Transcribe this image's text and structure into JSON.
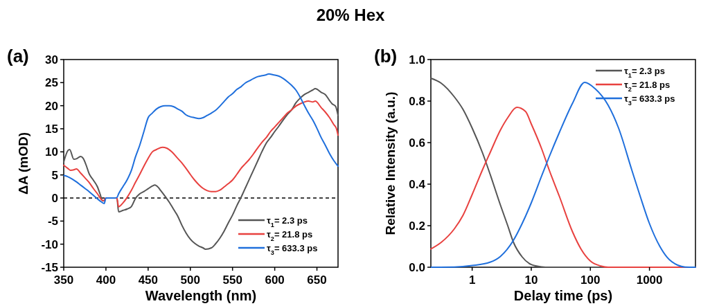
{
  "chart_data": [
    {
      "type": "line",
      "title": "20% Hex",
      "annotations": [
        "(a)"
      ],
      "xlabel": "Wavelength (nm)",
      "ylabel": "ΔA (mOD)",
      "xlim": [
        350,
        675
      ],
      "xticks": [
        350,
        400,
        450,
        500,
        550,
        600,
        650
      ],
      "ylim": [
        -15,
        30
      ],
      "yticks": [
        -15,
        -10,
        -5,
        0,
        5,
        10,
        15,
        20,
        25,
        30
      ],
      "legend": "bottom right",
      "ref_lines": [
        {
          "axis": "y",
          "value": 0,
          "color": "#000000",
          "line_style": "dashed"
        }
      ],
      "series": [
        {
          "name": "τ$_{1}$= 2.3 ps",
          "color": "#555555",
          "x": [
            350,
            355,
            357,
            362,
            365,
            370,
            373,
            377,
            380,
            385,
            390,
            393,
            396,
            398,
            400,
            405,
            410,
            413,
            415,
            420,
            425,
            430,
            435,
            440,
            445,
            450,
            455,
            458,
            462,
            465,
            470,
            475,
            480,
            485,
            490,
            495,
            500,
            505,
            510,
            515,
            518,
            525,
            530,
            535,
            540,
            545,
            550,
            555,
            560,
            565,
            570,
            575,
            580,
            585,
            590,
            595,
            600,
            605,
            610,
            615,
            620,
            625,
            630,
            635,
            640,
            645,
            648,
            655,
            660,
            665,
            668,
            672,
            675
          ],
          "values": [
            7.8,
            10.3,
            10.5,
            8.4,
            8.5,
            9.0,
            8.6,
            6.9,
            5.3,
            3.9,
            2.4,
            0.9,
            -0.6,
            -0.6,
            0,
            0,
            0,
            0,
            -3.0,
            -2.7,
            -2.4,
            -1.9,
            -0.1,
            0.9,
            1.4,
            2.0,
            2.6,
            2.8,
            2.3,
            1.6,
            0.4,
            -0.9,
            -2.4,
            -3.9,
            -5.9,
            -7.6,
            -8.9,
            -9.8,
            -10.4,
            -10.8,
            -11.1,
            -10.8,
            -9.9,
            -8.7,
            -7.2,
            -5.4,
            -3.7,
            -1.7,
            0.1,
            2.1,
            4.1,
            6.1,
            8.1,
            10.1,
            11.9,
            13.1,
            14.4,
            15.6,
            16.9,
            18.1,
            19.1,
            20.6,
            21.6,
            22.4,
            22.9,
            23.4,
            23.7,
            22.9,
            22.4,
            21.1,
            20.4,
            19.9,
            17.9
          ]
        },
        {
          "name": "τ$_{2}$= 21.8 ps",
          "color": "#e8413f",
          "x": [
            350,
            355,
            358,
            362,
            365,
            370,
            375,
            380,
            385,
            390,
            395,
            397,
            400,
            410,
            413,
            415,
            420,
            425,
            430,
            435,
            440,
            445,
            450,
            455,
            460,
            467,
            472,
            478,
            485,
            490,
            495,
            500,
            505,
            510,
            515,
            520,
            525,
            530,
            535,
            540,
            545,
            550,
            555,
            560,
            565,
            570,
            575,
            580,
            585,
            590,
            595,
            600,
            605,
            610,
            615,
            620,
            625,
            630,
            635,
            640,
            645,
            648,
            655,
            660,
            665,
            670,
            673,
            675
          ],
          "values": [
            7.1,
            6.4,
            6.0,
            6.1,
            6.3,
            5.4,
            4.4,
            3.4,
            2.1,
            0.9,
            -0.4,
            -0.6,
            0,
            0,
            0,
            -1.9,
            -1.1,
            0.1,
            1.6,
            3.4,
            5.1,
            6.9,
            8.6,
            10.0,
            10.5,
            11.0,
            10.8,
            10.0,
            8.6,
            7.6,
            6.4,
            5.1,
            3.9,
            2.9,
            2.1,
            1.6,
            1.4,
            1.4,
            1.7,
            2.4,
            3.1,
            3.9,
            5.1,
            6.4,
            7.4,
            8.4,
            9.6,
            10.9,
            12.1,
            13.1,
            14.4,
            15.4,
            16.4,
            17.4,
            18.4,
            19.1,
            19.9,
            20.4,
            20.8,
            21.0,
            20.8,
            21.0,
            19.6,
            18.6,
            17.4,
            15.9,
            15.1,
            13.6
          ]
        },
        {
          "name": "τ$_{3}$= 633.3 ps",
          "color": "#1f6fdc",
          "x": [
            350,
            355,
            360,
            365,
            370,
            375,
            380,
            385,
            390,
            395,
            398,
            400,
            410,
            413,
            415,
            420,
            425,
            430,
            435,
            440,
            445,
            450,
            455,
            460,
            465,
            470,
            475,
            480,
            485,
            490,
            495,
            500,
            505,
            510,
            515,
            520,
            525,
            530,
            535,
            540,
            545,
            550,
            555,
            560,
            565,
            570,
            575,
            580,
            585,
            590,
            593,
            598,
            605,
            610,
            615,
            620,
            625,
            630,
            635,
            640,
            645,
            650,
            655,
            660,
            665,
            670,
            675
          ],
          "values": [
            4.9,
            4.6,
            4.1,
            3.5,
            2.8,
            2.1,
            1.4,
            0.6,
            -0.2,
            -0.9,
            -1.2,
            0,
            0,
            0.1,
            0.9,
            2.4,
            3.9,
            5.9,
            8.9,
            11.4,
            14.4,
            17.4,
            18.4,
            19.3,
            19.8,
            20.0,
            20.0,
            19.8,
            19.3,
            18.8,
            18.0,
            17.6,
            17.4,
            17.2,
            17.4,
            17.9,
            18.4,
            19.0,
            19.9,
            20.9,
            21.9,
            22.6,
            23.5,
            24.1,
            24.9,
            25.4,
            25.9,
            26.3,
            26.5,
            26.7,
            26.9,
            26.7,
            26.4,
            25.9,
            25.2,
            24.4,
            23.4,
            21.9,
            20.1,
            18.4,
            16.9,
            15.1,
            13.1,
            11.4,
            9.6,
            8.1,
            6.9
          ]
        }
      ]
    },
    {
      "type": "line",
      "annotations": [
        "(b)"
      ],
      "xlabel": "Delay time (ps)",
      "ylabel": "Relative Intensity (a.u.)",
      "log": "x",
      "xlim": [
        0.2,
        6000
      ],
      "xticks": [
        1,
        10,
        100,
        1000
      ],
      "ylim": [
        0,
        1
      ],
      "yticks": [
        {
          "value": 0,
          "label": "0.0"
        },
        0.2,
        0.4,
        0.6,
        0.8,
        {
          "value": 1,
          "label": "1.0"
        }
      ],
      "legend": "top right",
      "series": [
        {
          "name": "τ$_{1}$= 2.3 ps",
          "color": "#555555",
          "x": [
            0.2,
            0.3,
            0.5,
            0.7,
            1,
            1.5,
            2,
            3,
            4,
            5,
            7,
            10,
            15,
            20,
            50,
            6000
          ],
          "values": [
            0.91,
            0.886,
            0.82,
            0.76,
            0.67,
            0.55,
            0.45,
            0.3,
            0.2,
            0.12,
            0.05,
            0.013,
            0.002,
            0,
            0,
            0
          ]
        },
        {
          "name": "τ$_{2}$= 21.8 ps",
          "color": "#e8413f",
          "x": [
            0.2,
            0.3,
            0.5,
            0.7,
            1,
            1.5,
            2,
            3,
            4,
            5.7,
            8,
            10,
            15,
            20,
            30,
            50,
            70,
            100,
            150,
            200,
            6000
          ],
          "values": [
            0.088,
            0.12,
            0.185,
            0.25,
            0.35,
            0.47,
            0.55,
            0.66,
            0.72,
            0.77,
            0.75,
            0.69,
            0.57,
            0.47,
            0.34,
            0.17,
            0.086,
            0.03,
            0.006,
            0,
            0
          ]
        },
        {
          "name": "τ$_{3}$= 633.3 ps",
          "color": "#1f6fdc",
          "x": [
            0.2,
            0.5,
            1,
            2,
            3,
            5,
            7,
            10,
            15,
            20,
            30,
            50,
            80,
            120,
            200,
            300,
            500,
            700,
            1000,
            1500,
            2000,
            3000,
            4000,
            6000
          ],
          "values": [
            0,
            0.001,
            0.008,
            0.024,
            0.052,
            0.13,
            0.21,
            0.31,
            0.44,
            0.53,
            0.65,
            0.79,
            0.89,
            0.86,
            0.78,
            0.67,
            0.47,
            0.34,
            0.21,
            0.1,
            0.047,
            0.01,
            0.001,
            0
          ]
        }
      ]
    }
  ]
}
